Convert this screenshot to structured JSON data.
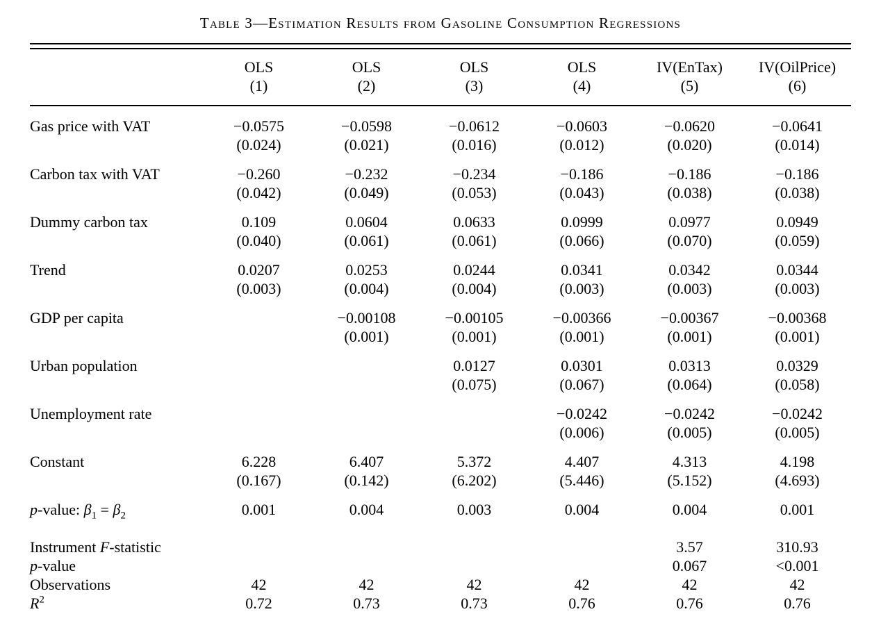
{
  "colors": {
    "text": "#000000",
    "background": "#ffffff"
  },
  "chart_data": {
    "type": "table",
    "title": "Table 3—Estimation Results from Gasoline Consumption Regressions",
    "columns": [
      {
        "model": "OLS",
        "number": "(1)"
      },
      {
        "model": "OLS",
        "number": "(2)"
      },
      {
        "model": "OLS",
        "number": "(3)"
      },
      {
        "model": "OLS",
        "number": "(4)"
      },
      {
        "model": "IV(EnTax)",
        "number": "(5)"
      },
      {
        "model": "IV(OilPrice)",
        "number": "(6)"
      }
    ],
    "coefficient_rows": [
      {
        "label": "Gas price with VAT",
        "estimates": [
          "−0.0575",
          "−0.0598",
          "−0.0612",
          "−0.0603",
          "−0.0620",
          "−0.0641"
        ],
        "std_errors": [
          "(0.024)",
          "(0.021)",
          "(0.016)",
          "(0.012)",
          "(0.020)",
          "(0.014)"
        ]
      },
      {
        "label": "Carbon tax with VAT",
        "estimates": [
          "−0.260",
          "−0.232",
          "−0.234",
          "−0.186",
          "−0.186",
          "−0.186"
        ],
        "std_errors": [
          "(0.042)",
          "(0.049)",
          "(0.053)",
          "(0.043)",
          "(0.038)",
          "(0.038)"
        ]
      },
      {
        "label": "Dummy carbon tax",
        "estimates": [
          "0.109",
          "0.0604",
          "0.0633",
          "0.0999",
          "0.0977",
          "0.0949"
        ],
        "std_errors": [
          "(0.040)",
          "(0.061)",
          "(0.061)",
          "(0.066)",
          "(0.070)",
          "(0.059)"
        ]
      },
      {
        "label": "Trend",
        "estimates": [
          "0.0207",
          "0.0253",
          "0.0244",
          "0.0341",
          "0.0342",
          "0.0344"
        ],
        "std_errors": [
          "(0.003)",
          "(0.004)",
          "(0.004)",
          "(0.003)",
          "(0.003)",
          "(0.003)"
        ]
      },
      {
        "label": "GDP per capita",
        "estimates": [
          "",
          "−0.00108",
          "−0.00105",
          "−0.00366",
          "−0.00367",
          "−0.00368"
        ],
        "std_errors": [
          "",
          "(0.001)",
          "(0.001)",
          "(0.001)",
          "(0.001)",
          "(0.001)"
        ]
      },
      {
        "label": "Urban population",
        "estimates": [
          "",
          "",
          "0.0127",
          "0.0301",
          "0.0313",
          "0.0329"
        ],
        "std_errors": [
          "",
          "",
          "(0.075)",
          "(0.067)",
          "(0.064)",
          "(0.058)"
        ]
      },
      {
        "label": "Unemployment rate",
        "estimates": [
          "",
          "",
          "",
          "−0.0242",
          "−0.0242",
          "−0.0242"
        ],
        "std_errors": [
          "",
          "",
          "",
          "(0.006)",
          "(0.005)",
          "(0.005)"
        ]
      },
      {
        "label": "Constant",
        "estimates": [
          "6.228",
          "6.407",
          "5.372",
          "4.407",
          "4.313",
          "4.198"
        ],
        "std_errors": [
          "(0.167)",
          "(0.142)",
          "(6.202)",
          "(5.446)",
          "(5.152)",
          "(4.693)"
        ]
      }
    ],
    "pvalue_row": {
      "label_segments": [
        {
          "text": "p",
          "italic": true
        },
        {
          "text": "-value: "
        },
        {
          "text": "β",
          "italic": true
        },
        {
          "text": "1",
          "sub": true
        },
        {
          "text": " = "
        },
        {
          "text": "β",
          "italic": true
        },
        {
          "text": "2",
          "sub": true
        }
      ],
      "values": [
        "0.001",
        "0.004",
        "0.003",
        "0.004",
        "0.004",
        "0.001"
      ]
    },
    "summary_rows": [
      {
        "label_segments": [
          {
            "text": "Instrument "
          },
          {
            "text": "F",
            "italic": true
          },
          {
            "text": "-statistic"
          }
        ],
        "values": [
          "",
          "",
          "",
          "",
          "3.57",
          "310.93"
        ]
      },
      {
        "label_segments": [
          {
            "text": "p",
            "italic": true
          },
          {
            "text": "-value"
          }
        ],
        "values": [
          "",
          "",
          "",
          "",
          "0.067",
          "<0.001"
        ]
      },
      {
        "label_segments": [
          {
            "text": "Observations"
          }
        ],
        "values": [
          "42",
          "42",
          "42",
          "42",
          "42",
          "42"
        ]
      },
      {
        "label_segments": [
          {
            "text": "R",
            "italic": true
          },
          {
            "text": "2",
            "sup": true
          }
        ],
        "values": [
          "0.72",
          "0.73",
          "0.73",
          "0.76",
          "0.76",
          "0.76"
        ]
      }
    ]
  }
}
